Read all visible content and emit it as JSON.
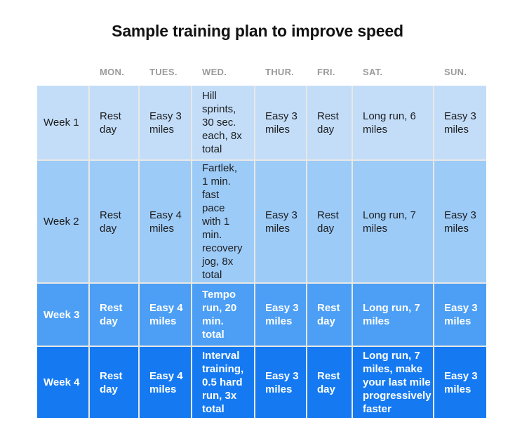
{
  "title": "Sample training plan to improve speed",
  "colors": {
    "page_background": "#ffffff",
    "title_text": "#121212",
    "day_header_text": "#9a9a9c",
    "gridline": "#e8e8e5",
    "week1_row": "#c3ddf9",
    "week2_row": "#9dcbf7",
    "week3_row": "#4c9ff5",
    "week4_row": "#157af2",
    "light_row_text": "#1d1d1f",
    "dark_row_text": "#ffffff"
  },
  "table": {
    "day_headers": [
      "MON.",
      "TUES.",
      "WED.",
      "THUR.",
      "FRI.",
      "SAT.",
      "SUN."
    ],
    "rows": [
      {
        "label": "Week 1",
        "cells": [
          "Rest\nday",
          "Easy 3\nmiles",
          "Hill\nsprints,\n30 sec.\neach, 8x\ntotal",
          "Easy 3\nmiles",
          "Rest\nday",
          "Long run, 6\nmiles",
          "Easy 3\nmiles"
        ]
      },
      {
        "label": "Week 2",
        "cells": [
          "Rest\nday",
          "Easy 4\nmiles",
          "Fartlek,\n1 min.\nfast\npace\nwith 1\nmin.\nrecovery\njog, 8x\ntotal",
          "Easy 3\nmiles",
          "Rest\nday",
          "Long run, 7\nmiles",
          "Easy 3\nmiles"
        ]
      },
      {
        "label": "Week 3",
        "cells": [
          "Rest\nday",
          "Easy 4\nmiles",
          "Tempo\nrun, 20\nmin.\ntotal",
          "Easy 3\nmiles",
          "Rest\nday",
          "Long run, 7\nmiles",
          "Easy 3\nmiles"
        ]
      },
      {
        "label": "Week 4",
        "cells": [
          "Rest\nday",
          "Easy 4\nmiles",
          "Interval\ntraining,\n0.5 hard\nrun, 3x\ntotal",
          "Easy 3\nmiles",
          "Rest\nday",
          "Long run, 7\nmiles, make\nyour last mile\nprogressively\nfaster",
          "Easy 3\nmiles"
        ]
      }
    ]
  },
  "chart_data": {
    "type": "table",
    "title": "Sample training plan to improve speed",
    "columns": [
      "",
      "MON.",
      "TUES.",
      "WED.",
      "THUR.",
      "FRI.",
      "SAT.",
      "SUN."
    ],
    "rows": [
      [
        "Week 1",
        "Rest day",
        "Easy 3 miles",
        "Hill sprints, 30 sec. each, 8x total",
        "Easy 3 miles",
        "Rest day",
        "Long run, 6 miles",
        "Easy 3 miles"
      ],
      [
        "Week 2",
        "Rest day",
        "Easy 4 miles",
        "Fartlek, 1 min. fast pace with 1 min. recovery jog, 8x total",
        "Easy 3 miles",
        "Rest day",
        "Long run, 7 miles",
        "Easy 3 miles"
      ],
      [
        "Week 3",
        "Rest day",
        "Easy 4 miles",
        "Tempo run, 20 min. total",
        "Easy 3 miles",
        "Rest day",
        "Long run, 7 miles",
        "Easy 3 miles"
      ],
      [
        "Week 4",
        "Rest day",
        "Easy 4 miles",
        "Interval training, 0.5 hard run, 3x total",
        "Easy 3 miles",
        "Rest day",
        "Long run, 7 miles, make your last mile progressively faster",
        "Easy 3 miles"
      ]
    ],
    "layout": {
      "legend": false,
      "grid": true,
      "row_colors": [
        "#c3ddf9",
        "#9dcbf7",
        "#4c9ff5",
        "#157af2"
      ]
    }
  }
}
